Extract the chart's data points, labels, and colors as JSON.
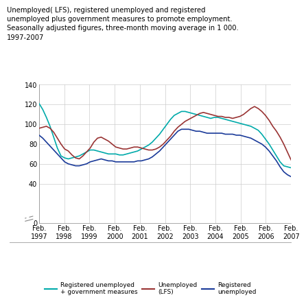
{
  "title": "Unemployed( LFS), registered unemployed and registered\nunemployed plus government measures to promote employment.\nSeasonally adjusted figures, three-month moving average in 1 000.\n1997-2007",
  "ylim": [
    0,
    140
  ],
  "yticks": [
    0,
    40,
    60,
    80,
    100,
    120,
    140
  ],
  "xtick_labels": [
    "Feb.\n1997",
    "Feb.\n1998",
    "Feb.\n1999",
    "Feb.\n2000",
    "Feb.\n2001",
    "Feb.\n2002",
    "Feb.\n2003",
    "Feb.\n2004",
    "Feb.\n2005",
    "Feb.\n2006",
    "Feb.\n2007"
  ],
  "line_cyan_color": "#00AAAA",
  "line_red_color": "#993333",
  "line_blue_color": "#1a3a99",
  "legend": [
    {
      "label": "Registered unemployed\n+ government measures",
      "color": "#00AAAA"
    },
    {
      "label": "Unemployed\n(LFS)",
      "color": "#993333"
    },
    {
      "label": "Registered\nunemployed",
      "color": "#1a3a99"
    }
  ],
  "cyan_data": [
    121,
    115,
    107,
    98,
    87,
    76,
    68,
    66,
    65,
    66,
    67,
    68,
    70,
    72,
    74,
    74,
    73,
    72,
    71,
    70,
    70,
    70,
    69,
    69,
    70,
    71,
    72,
    73,
    75,
    77,
    79,
    82,
    86,
    90,
    95,
    100,
    105,
    109,
    111,
    113,
    113,
    112,
    111,
    110,
    109,
    108,
    107,
    106,
    107,
    107,
    106,
    105,
    104,
    103,
    102,
    101,
    100,
    99,
    98,
    96,
    94,
    90,
    85,
    80,
    74,
    68,
    62,
    58,
    57,
    56
  ],
  "red_data": [
    96,
    97,
    98,
    96,
    92,
    86,
    80,
    75,
    73,
    69,
    66,
    65,
    68,
    72,
    76,
    82,
    86,
    87,
    85,
    83,
    80,
    77,
    76,
    75,
    75,
    76,
    77,
    77,
    76,
    75,
    74,
    74,
    75,
    77,
    80,
    84,
    88,
    93,
    97,
    100,
    103,
    105,
    107,
    109,
    111,
    112,
    111,
    110,
    109,
    108,
    108,
    107,
    107,
    106,
    107,
    108,
    110,
    113,
    116,
    118,
    116,
    113,
    109,
    104,
    98,
    93,
    87,
    80,
    72,
    64
  ],
  "blue_data": [
    89,
    86,
    82,
    78,
    74,
    70,
    66,
    62,
    60,
    59,
    58,
    58,
    59,
    60,
    62,
    63,
    64,
    65,
    64,
    63,
    63,
    62,
    62,
    62,
    62,
    62,
    62,
    63,
    63,
    64,
    65,
    67,
    70,
    73,
    77,
    81,
    85,
    89,
    93,
    95,
    95,
    95,
    94,
    93,
    93,
    92,
    91,
    91,
    91,
    91,
    91,
    90,
    90,
    90,
    89,
    89,
    88,
    87,
    86,
    84,
    82,
    80,
    77,
    73,
    68,
    63,
    57,
    52,
    49,
    47
  ],
  "title_fontsize": 7.2,
  "tick_fontsize": 7,
  "legend_fontsize": 6.5,
  "bg_color": "#ffffff",
  "grid_color": "#cccccc"
}
